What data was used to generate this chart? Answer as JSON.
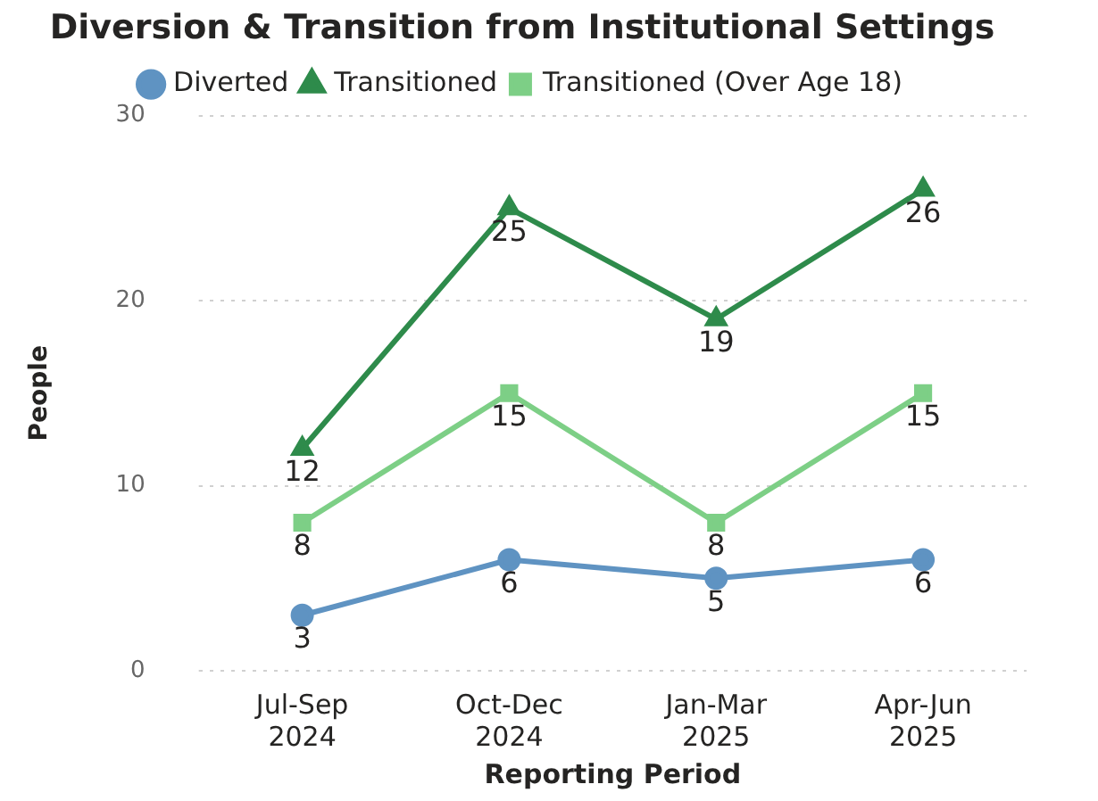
{
  "chart_data": {
    "type": "line",
    "title": "Diversion & Transition from Institutional Settings",
    "xlabel": "Reporting Period",
    "ylabel": "People",
    "categories": [
      "Jul-Sep 2024",
      "Oct-Dec 2024",
      "Jan-Mar 2025",
      "Apr-Jun 2025"
    ],
    "series": [
      {
        "name": "Diverted",
        "color": "#5f93c2",
        "marker": "circle",
        "values": [
          3,
          6,
          5,
          6
        ]
      },
      {
        "name": "Transitioned",
        "color": "#2e8b4b",
        "marker": "triangle",
        "values": [
          12,
          25,
          19,
          26
        ]
      },
      {
        "name": "Transitioned (Over Age 18)",
        "color": "#7dcf86",
        "marker": "square",
        "values": [
          8,
          15,
          8,
          15
        ]
      }
    ],
    "ylim": [
      0,
      30
    ],
    "yticks": [
      0,
      10,
      20,
      30
    ],
    "grid": "y",
    "legend": "top",
    "data_labels": true
  }
}
